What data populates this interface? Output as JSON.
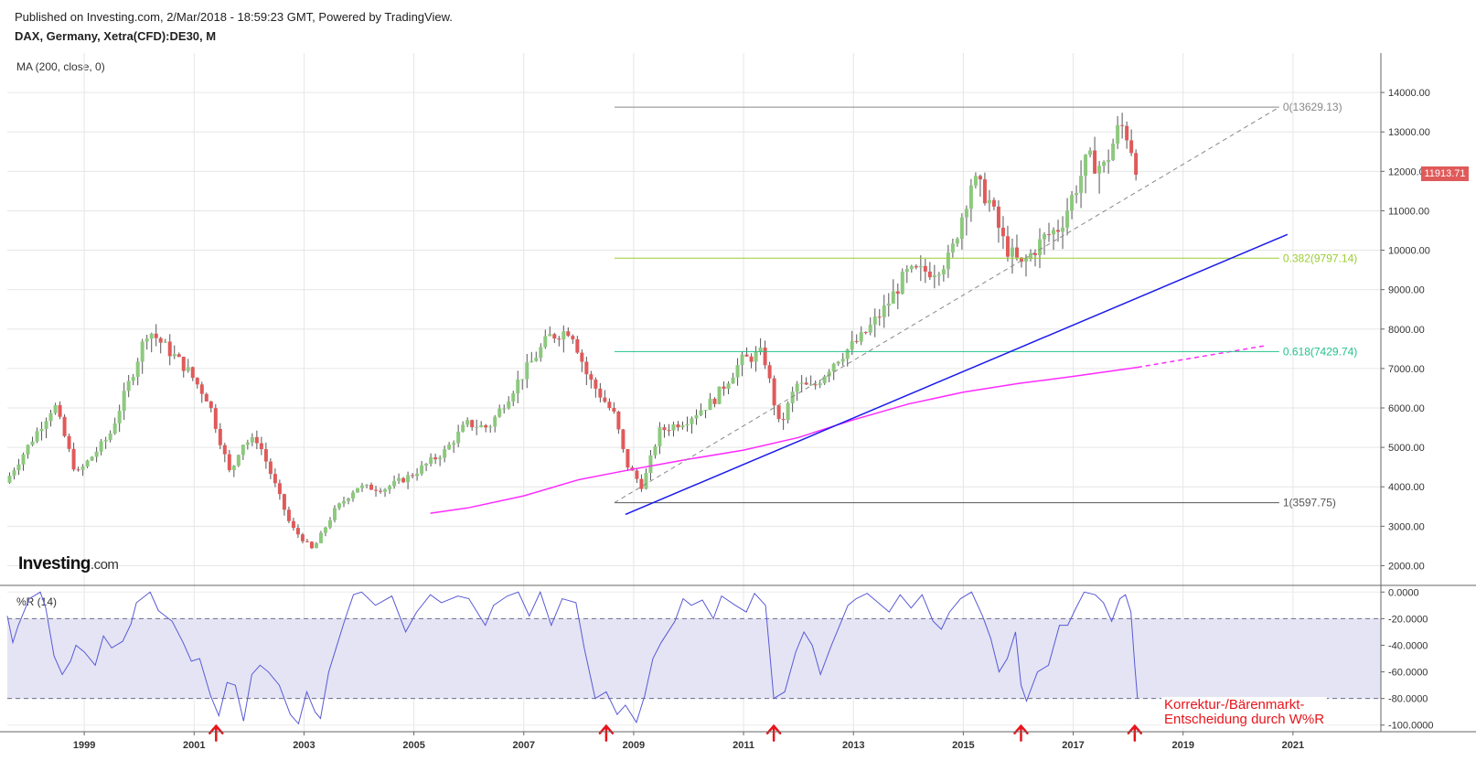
{
  "header": {
    "published": "Published on Investing.com, 2/Mar/2018 - 18:59:23 GMT, Powered by TradingView.",
    "symbol": "DAX, Germany, Xetra(CFD):DE30, M"
  },
  "indicators": {
    "ma_label": "MA (200, close, 0)",
    "wr_label": "%R (14)"
  },
  "logo": {
    "main": "Investing",
    "suffix": ".com"
  },
  "last_price": "11913.71",
  "annotation": {
    "line1": "Korrektur-/Bärenmarkt-",
    "line2": "Entscheidung durch W%R"
  },
  "colors": {
    "up": "#8dc97e",
    "down": "#e05a5a",
    "ma": "#ff2aff",
    "trend": "#1a1aee",
    "fib0": "#888888",
    "fib382": "#9acd32",
    "fib618": "#22c28a",
    "fib1": "#555555",
    "wr": "#5a5ad6",
    "wr_band": "#e4e4f4",
    "arrow": "#e8141b"
  },
  "chart_data": [
    {
      "type": "candlestick",
      "title": "DAX, Germany, Xetra(CFD):DE30, M",
      "x_unit": "year",
      "xlim": [
        1997.6,
        2022.6
      ],
      "ylim": [
        1500,
        15000
      ],
      "x_ticks": [
        "1999",
        "2001",
        "2003",
        "2005",
        "2007",
        "2009",
        "2011",
        "2013",
        "2015",
        "2017",
        "2019",
        "2021"
      ],
      "y_ticks": [
        "2000.00",
        "3000.00",
        "4000.00",
        "5000.00",
        "6000.00",
        "7000.00",
        "8000.00",
        "9000.00",
        "10000.00",
        "11000.00",
        "12000.00",
        "13000.00",
        "14000.00"
      ],
      "price_path": [
        [
          1997.6,
          4100
        ],
        [
          1998.5,
          6100
        ],
        [
          1998.9,
          4300
        ],
        [
          1999.5,
          5300
        ],
        [
          1999.9,
          6800
        ],
        [
          2000.2,
          8000
        ],
        [
          2000.9,
          7000
        ],
        [
          2001.3,
          6200
        ],
        [
          2001.7,
          4300
        ],
        [
          2001.9,
          5100
        ],
        [
          2002.2,
          5200
        ],
        [
          2002.8,
          3000
        ],
        [
          2003.2,
          2400
        ],
        [
          2003.6,
          3400
        ],
        [
          2004.0,
          4000
        ],
        [
          2004.5,
          3950
        ],
        [
          2005.0,
          4300
        ],
        [
          2005.6,
          4900
        ],
        [
          2006.0,
          5600
        ],
        [
          2006.4,
          5500
        ],
        [
          2006.9,
          6600
        ],
        [
          2007.5,
          7800
        ],
        [
          2007.9,
          8000
        ],
        [
          2008.2,
          6800
        ],
        [
          2008.7,
          5800
        ],
        [
          2008.9,
          4600
        ],
        [
          2009.2,
          4000
        ],
        [
          2009.5,
          5400
        ],
        [
          2010.0,
          5700
        ],
        [
          2010.5,
          6200
        ],
        [
          2011.0,
          7200
        ],
        [
          2011.4,
          7400
        ],
        [
          2011.7,
          5500
        ],
        [
          2012.0,
          6600
        ],
        [
          2012.3,
          6500
        ],
        [
          2012.7,
          7200
        ],
        [
          2013.2,
          7800
        ],
        [
          2013.6,
          8500
        ],
        [
          2014.0,
          9400
        ],
        [
          2014.5,
          9500
        ],
        [
          2014.8,
          9800
        ],
        [
          2015.2,
          11800
        ],
        [
          2015.5,
          11300
        ],
        [
          2015.8,
          10100
        ],
        [
          2016.1,
          9600
        ],
        [
          2016.5,
          10300
        ],
        [
          2016.8,
          10600
        ],
        [
          2017.3,
          12300
        ],
        [
          2017.6,
          12100
        ],
        [
          2017.9,
          13200
        ],
        [
          2018.08,
          12800
        ],
        [
          2018.17,
          11914
        ]
      ],
      "last_close": 11913.71,
      "ma_label": "MA (200, close, 0)",
      "ma_series": [
        [
          2005.3,
          3330
        ],
        [
          2006.0,
          3470
        ],
        [
          2007.0,
          3770
        ],
        [
          2008.0,
          4180
        ],
        [
          2009.0,
          4450
        ],
        [
          2010.0,
          4700
        ],
        [
          2011.0,
          4930
        ],
        [
          2012.0,
          5250
        ],
        [
          2013.0,
          5700
        ],
        [
          2014.0,
          6100
        ],
        [
          2015.0,
          6400
        ],
        [
          2016.0,
          6620
        ],
        [
          2017.0,
          6800
        ],
        [
          2018.17,
          7030
        ]
      ],
      "ma_projection": [
        [
          2018.17,
          7030
        ],
        [
          2020.5,
          7580
        ]
      ],
      "fibonacci": [
        {
          "level": "0",
          "value": 13629.13,
          "label": "0(13629.13)"
        },
        {
          "level": "0.382",
          "value": 9797.14,
          "label": "0.382(9797.14)"
        },
        {
          "level": "0.618",
          "value": 7429.74,
          "label": "0.618(7429.74)"
        },
        {
          "level": "1",
          "value": 3597.75,
          "label": "1(3597.75)"
        }
      ],
      "fib_x_range": [
        2008.65,
        2020.75
      ],
      "fib_diagonal": [
        [
          2008.65,
          3597.75
        ],
        [
          2020.75,
          13629.13
        ]
      ],
      "trendline": [
        [
          2008.85,
          3300
        ],
        [
          2020.9,
          10400
        ]
      ]
    },
    {
      "type": "line",
      "title": "%R (14)",
      "ylim": [
        -105,
        5
      ],
      "y_ticks": [
        "0.0000",
        "-20.0000",
        "-40.0000",
        "-60.0000",
        "-80.0000",
        "-100.0000"
      ],
      "bands": [
        -20,
        -80
      ],
      "series": [
        {
          "values": [
            [
              1997.6,
              -18
            ],
            [
              1997.7,
              -38
            ],
            [
              1997.8,
              -25
            ],
            [
              1998.0,
              -5
            ],
            [
              1998.2,
              0
            ],
            [
              1998.3,
              -12
            ],
            [
              1998.45,
              -48
            ],
            [
              1998.6,
              -62
            ],
            [
              1998.75,
              -52
            ],
            [
              1998.85,
              -40
            ],
            [
              1999.0,
              -45
            ],
            [
              1999.2,
              -55
            ],
            [
              1999.35,
              -33
            ],
            [
              1999.5,
              -42
            ],
            [
              1999.7,
              -37
            ],
            [
              1999.85,
              -24
            ],
            [
              1999.95,
              -8
            ],
            [
              2000.2,
              0
            ],
            [
              2000.35,
              -14
            ],
            [
              2000.6,
              -22
            ],
            [
              2000.8,
              -38
            ],
            [
              2000.95,
              -52
            ],
            [
              2001.1,
              -50
            ],
            [
              2001.3,
              -78
            ],
            [
              2001.45,
              -93
            ],
            [
              2001.6,
              -68
            ],
            [
              2001.75,
              -70
            ],
            [
              2001.9,
              -97
            ],
            [
              2002.05,
              -62
            ],
            [
              2002.2,
              -55
            ],
            [
              2002.35,
              -60
            ],
            [
              2002.55,
              -70
            ],
            [
              2002.75,
              -92
            ],
            [
              2002.9,
              -99
            ],
            [
              2003.05,
              -75
            ],
            [
              2003.2,
              -90
            ],
            [
              2003.3,
              -95
            ],
            [
              2003.45,
              -60
            ],
            [
              2003.6,
              -40
            ],
            [
              2003.75,
              -20
            ],
            [
              2003.9,
              -2
            ],
            [
              2004.05,
              0
            ],
            [
              2004.3,
              -10
            ],
            [
              2004.6,
              -3
            ],
            [
              2004.85,
              -30
            ],
            [
              2005.05,
              -15
            ],
            [
              2005.3,
              -2
            ],
            [
              2005.5,
              -8
            ],
            [
              2005.8,
              -3
            ],
            [
              2006.0,
              -5
            ],
            [
              2006.3,
              -25
            ],
            [
              2006.45,
              -10
            ],
            [
              2006.7,
              -3
            ],
            [
              2006.9,
              0
            ],
            [
              2007.1,
              -18
            ],
            [
              2007.3,
              0
            ],
            [
              2007.5,
              -25
            ],
            [
              2007.7,
              -5
            ],
            [
              2007.95,
              -8
            ],
            [
              2008.1,
              -42
            ],
            [
              2008.3,
              -80
            ],
            [
              2008.5,
              -75
            ],
            [
              2008.7,
              -92
            ],
            [
              2008.85,
              -85
            ],
            [
              2009.05,
              -98
            ],
            [
              2009.2,
              -78
            ],
            [
              2009.35,
              -50
            ],
            [
              2009.5,
              -38
            ],
            [
              2009.75,
              -22
            ],
            [
              2009.9,
              -5
            ],
            [
              2010.05,
              -10
            ],
            [
              2010.25,
              -6
            ],
            [
              2010.45,
              -20
            ],
            [
              2010.6,
              -3
            ],
            [
              2010.85,
              -10
            ],
            [
              2011.05,
              -15
            ],
            [
              2011.2,
              -1
            ],
            [
              2011.4,
              -10
            ],
            [
              2011.55,
              -80
            ],
            [
              2011.75,
              -75
            ],
            [
              2011.95,
              -45
            ],
            [
              2012.1,
              -30
            ],
            [
              2012.25,
              -40
            ],
            [
              2012.4,
              -62
            ],
            [
              2012.6,
              -40
            ],
            [
              2012.75,
              -25
            ],
            [
              2012.9,
              -10
            ],
            [
              2013.05,
              -5
            ],
            [
              2013.25,
              -1
            ],
            [
              2013.45,
              -8
            ],
            [
              2013.65,
              -15
            ],
            [
              2013.85,
              -2
            ],
            [
              2014.05,
              -12
            ],
            [
              2014.25,
              -2
            ],
            [
              2014.45,
              -22
            ],
            [
              2014.6,
              -28
            ],
            [
              2014.75,
              -15
            ],
            [
              2014.95,
              -5
            ],
            [
              2015.15,
              0
            ],
            [
              2015.35,
              -18
            ],
            [
              2015.5,
              -35
            ],
            [
              2015.65,
              -60
            ],
            [
              2015.8,
              -50
            ],
            [
              2015.95,
              -30
            ],
            [
              2016.05,
              -70
            ],
            [
              2016.15,
              -82
            ],
            [
              2016.35,
              -60
            ],
            [
              2016.55,
              -55
            ],
            [
              2016.75,
              -25
            ],
            [
              2016.9,
              -25
            ],
            [
              2017.05,
              -12
            ],
            [
              2017.2,
              0
            ],
            [
              2017.4,
              -2
            ],
            [
              2017.55,
              -8
            ],
            [
              2017.7,
              -22
            ],
            [
              2017.85,
              -5
            ],
            [
              2017.95,
              -2
            ],
            [
              2018.05,
              -15
            ],
            [
              2018.12,
              -55
            ],
            [
              2018.17,
              -80
            ]
          ]
        }
      ],
      "arrows": [
        2001.4,
        2008.5,
        2011.55,
        2016.05,
        2018.12
      ]
    }
  ]
}
